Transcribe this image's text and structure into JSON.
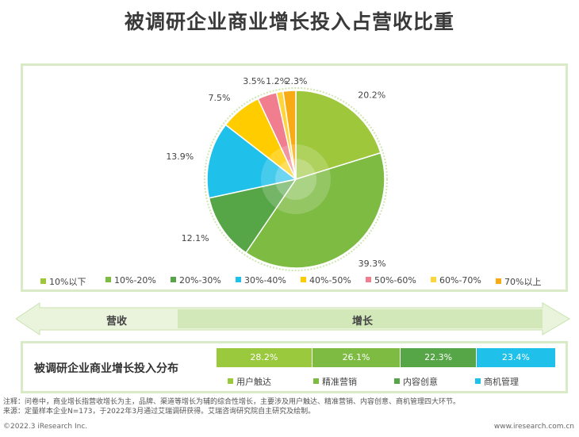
{
  "title": "被调研企业商业增长投入占营收比重",
  "chart_data": [
    {
      "type": "pie",
      "categories": [
        "10%以下",
        "10%-20%",
        "20%-30%",
        "30%-40%",
        "40%-50%",
        "50%-60%",
        "60%-70%",
        "70%以上"
      ],
      "values": [
        20.2,
        39.3,
        12.1,
        13.9,
        7.5,
        3.5,
        1.2,
        2.3
      ],
      "data_labels": [
        "20.2%",
        "39.3%",
        "12.1%",
        "13.9%",
        "7.5%",
        "3.5%",
        "1.2%",
        "2.3%"
      ],
      "colors": [
        "#9ec73b",
        "#7dbb42",
        "#56a546",
        "#1fc0ea",
        "#ffcc00",
        "#f07e8e",
        "#ffd53d",
        "#f9ab15"
      ],
      "legend_placement": "bottom"
    },
    {
      "type": "bar",
      "title": "被调研企业商业增长投入分布",
      "categories": [
        "用户触达",
        "精准营销",
        "内容创意",
        "商机管理"
      ],
      "values": [
        28.2,
        26.1,
        22.3,
        23.4
      ],
      "data_labels": [
        "28.2%",
        "26.1%",
        "22.3%",
        "23.4%"
      ],
      "colors": [
        "#9bc93e",
        "#7dbb42",
        "#56a546",
        "#1fc0ea"
      ],
      "stacked": true
    }
  ],
  "arrow": {
    "left_label": "营收",
    "right_label": "增长"
  },
  "notes": {
    "note": "注释：问卷中，商业增长指营收增长为主，品牌、渠道等增长为辅的综合性增长，主要涉及用户触达、精准营销、内容创意、商机管理四大环节。",
    "source": "来源：定量样本企业N=173，于2022年3月通过艾瑞调研获得。艾瑞咨询研究院自主研究及绘制。"
  },
  "footer": {
    "copyright": "©2022.3 iResearch Inc.",
    "site": "www.iresearch.com.cn"
  },
  "theme": {
    "panel_border": "#d9ebc6",
    "arrow_fill": "#eaf4dd"
  }
}
